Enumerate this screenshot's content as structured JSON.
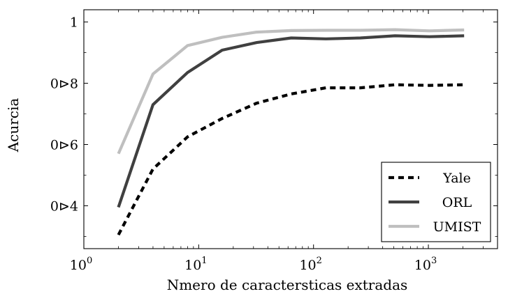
{
  "chart_data": {
    "type": "line",
    "xlabel": "Nmero de caractersticas extradas",
    "ylabel": "Acurcia",
    "xscale": "log",
    "xlim": [
      1,
      4000
    ],
    "ylim": [
      0.26,
      1.04
    ],
    "grid": false,
    "legend_position": "bottom-right",
    "x_tick_values": [
      1,
      10,
      100,
      1000
    ],
    "x_tick_labels": [
      {
        "base": "10",
        "exp": "0"
      },
      {
        "base": "10",
        "exp": "1"
      },
      {
        "base": "10",
        "exp": "2"
      },
      {
        "base": "10",
        "exp": "3"
      }
    ],
    "y_tick_values": [
      0.4,
      0.6,
      0.8,
      1.0
    ],
    "y_tick_labels": [
      "0⊳4",
      "0⊳6",
      "0⊳8",
      "1"
    ],
    "series": [
      {
        "name": "Yale",
        "color": "#000000",
        "style": "dashed",
        "x": [
          2,
          4,
          8,
          16,
          32,
          64,
          128,
          256,
          512,
          1024,
          2048
        ],
        "y": [
          0.305,
          0.52,
          0.625,
          0.685,
          0.735,
          0.765,
          0.785,
          0.785,
          0.795,
          0.793,
          0.795
        ]
      },
      {
        "name": "ORL",
        "color": "#404040",
        "style": "solid",
        "x": [
          2,
          4,
          8,
          16,
          32,
          64,
          128,
          256,
          512,
          1024,
          2048
        ],
        "y": [
          0.395,
          0.73,
          0.835,
          0.908,
          0.933,
          0.948,
          0.945,
          0.948,
          0.955,
          0.952,
          0.955
        ]
      },
      {
        "name": "UMIST",
        "color": "#bfbfbf",
        "style": "solid",
        "x": [
          2,
          4,
          8,
          16,
          32,
          64,
          128,
          256,
          512,
          1024,
          2048
        ],
        "y": [
          0.57,
          0.83,
          0.923,
          0.95,
          0.967,
          0.972,
          0.973,
          0.973,
          0.975,
          0.971,
          0.974
        ]
      }
    ]
  }
}
